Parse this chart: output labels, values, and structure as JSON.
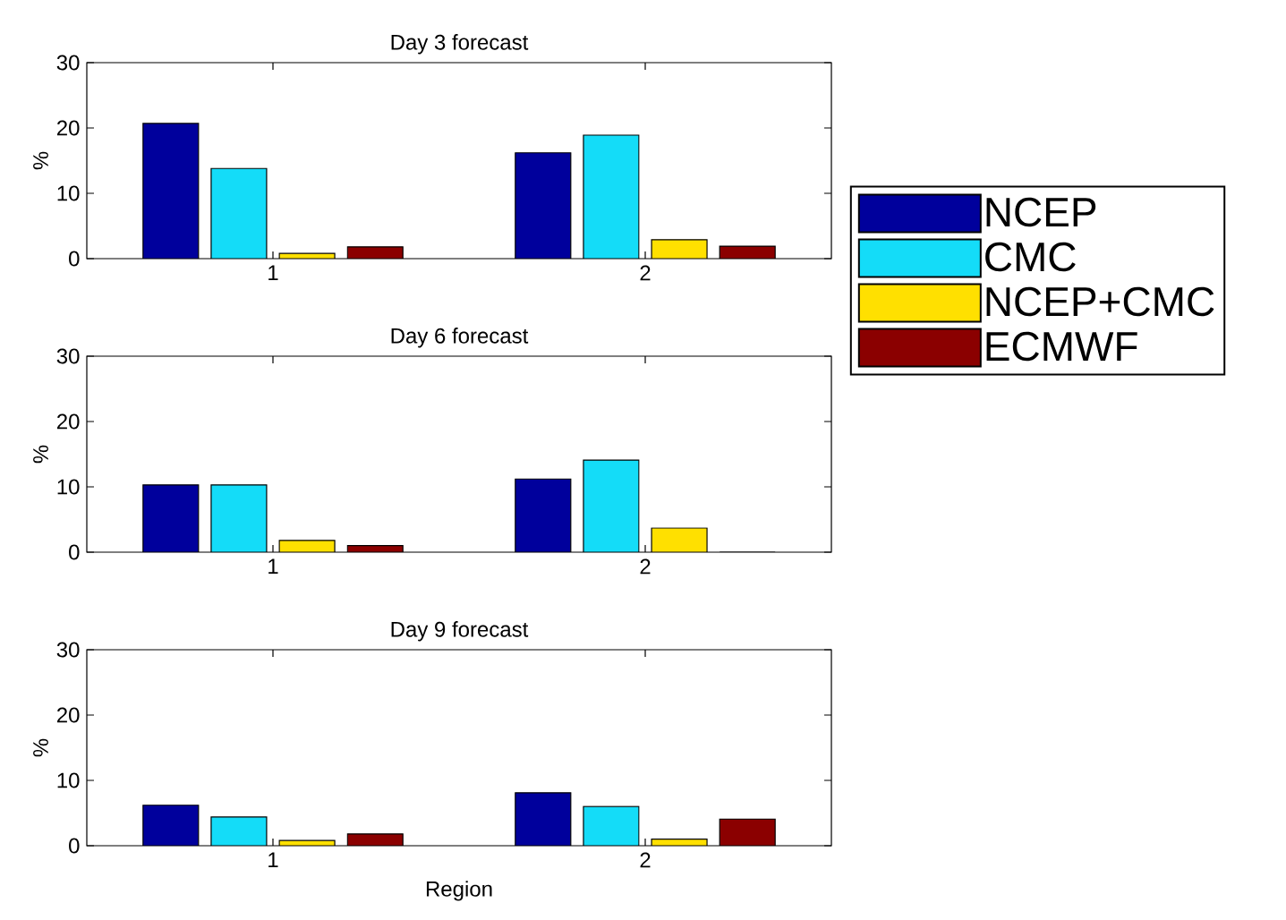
{
  "chart_data": [
    {
      "type": "bar",
      "title": "Day 3 forecast",
      "ylabel": "%",
      "categories": [
        "1",
        "2"
      ],
      "ylim": [
        0,
        30
      ],
      "yticks": [
        0,
        10,
        20,
        30
      ],
      "series": [
        {
          "color": "#00009c",
          "values": [
            20.7,
            16.2
          ]
        },
        {
          "color": "#14dcf8",
          "values": [
            13.8,
            18.9
          ]
        },
        {
          "color": "#ffe000",
          "values": [
            0.8,
            2.9
          ]
        },
        {
          "color": "#8b0000",
          "values": [
            1.8,
            1.9
          ]
        }
      ]
    },
    {
      "type": "bar",
      "title": "Day 6 forecast",
      "ylabel": "%",
      "categories": [
        "1",
        "2"
      ],
      "ylim": [
        0,
        30
      ],
      "yticks": [
        0,
        10,
        20,
        30
      ],
      "legend": "right",
      "series": [
        {
          "name": "NCEP",
          "color": "#00009c",
          "values": [
            10.3,
            11.2
          ]
        },
        {
          "name": "CMC",
          "color": "#14dcf8",
          "values": [
            10.3,
            14.1
          ]
        },
        {
          "name": "NCEP+CMC",
          "color": "#ffe000",
          "values": [
            1.8,
            3.7
          ]
        },
        {
          "name": "ECMWF",
          "color": "#8b0000",
          "values": [
            1.0,
            0
          ]
        }
      ]
    },
    {
      "type": "bar",
      "title": "Day 9 forecast",
      "xlabel": "Region",
      "ylabel": "%",
      "categories": [
        "1",
        "2"
      ],
      "ylim": [
        0,
        30
      ],
      "yticks": [
        0,
        10,
        20,
        30
      ],
      "series": [
        {
          "color": "#00009c",
          "values": [
            6.2,
            8.1
          ]
        },
        {
          "color": "#14dcf8",
          "values": [
            4.4,
            6.0
          ]
        },
        {
          "color": "#ffe000",
          "values": [
            0.8,
            1.0
          ]
        },
        {
          "color": "#8b0000",
          "values": [
            1.8,
            4.1
          ]
        }
      ]
    }
  ]
}
